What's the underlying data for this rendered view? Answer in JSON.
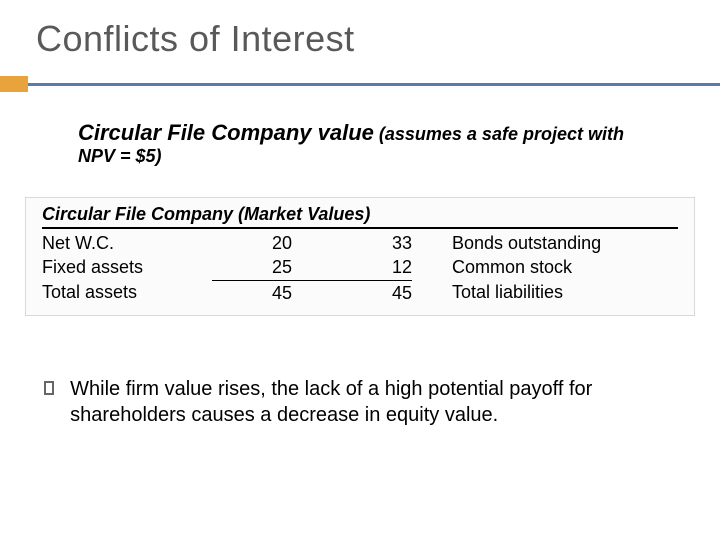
{
  "title": "Conflicts of Interest",
  "subtitle_bold": "Circular File Company value",
  "subtitle_rest": " (assumes a safe project with NPV = $5)",
  "colors": {
    "title_color": "#595959",
    "accent_orange": "#e8a33d",
    "accent_blue": "#5b7ba6",
    "table_bg": "#fbfbfb",
    "table_border": "#d9d9d9",
    "text": "#000000",
    "bullet_border": "#666666"
  },
  "table": {
    "heading": "Circular File Company (Market Values)",
    "rows": [
      {
        "left_label": "Net W.C.",
        "left_val": "20",
        "right_val": "33",
        "right_label": "Bonds outstanding"
      },
      {
        "left_label": "Fixed assets",
        "left_val": "25",
        "right_val": "12",
        "right_label": "Common stock"
      },
      {
        "left_label": "Total assets",
        "left_val": "45",
        "right_val": "45",
        "right_label": "Total liabilities",
        "totals": true
      }
    ]
  },
  "bullet": "While firm value rises, the lack of a high potential payoff for shareholders causes a decrease in equity value."
}
